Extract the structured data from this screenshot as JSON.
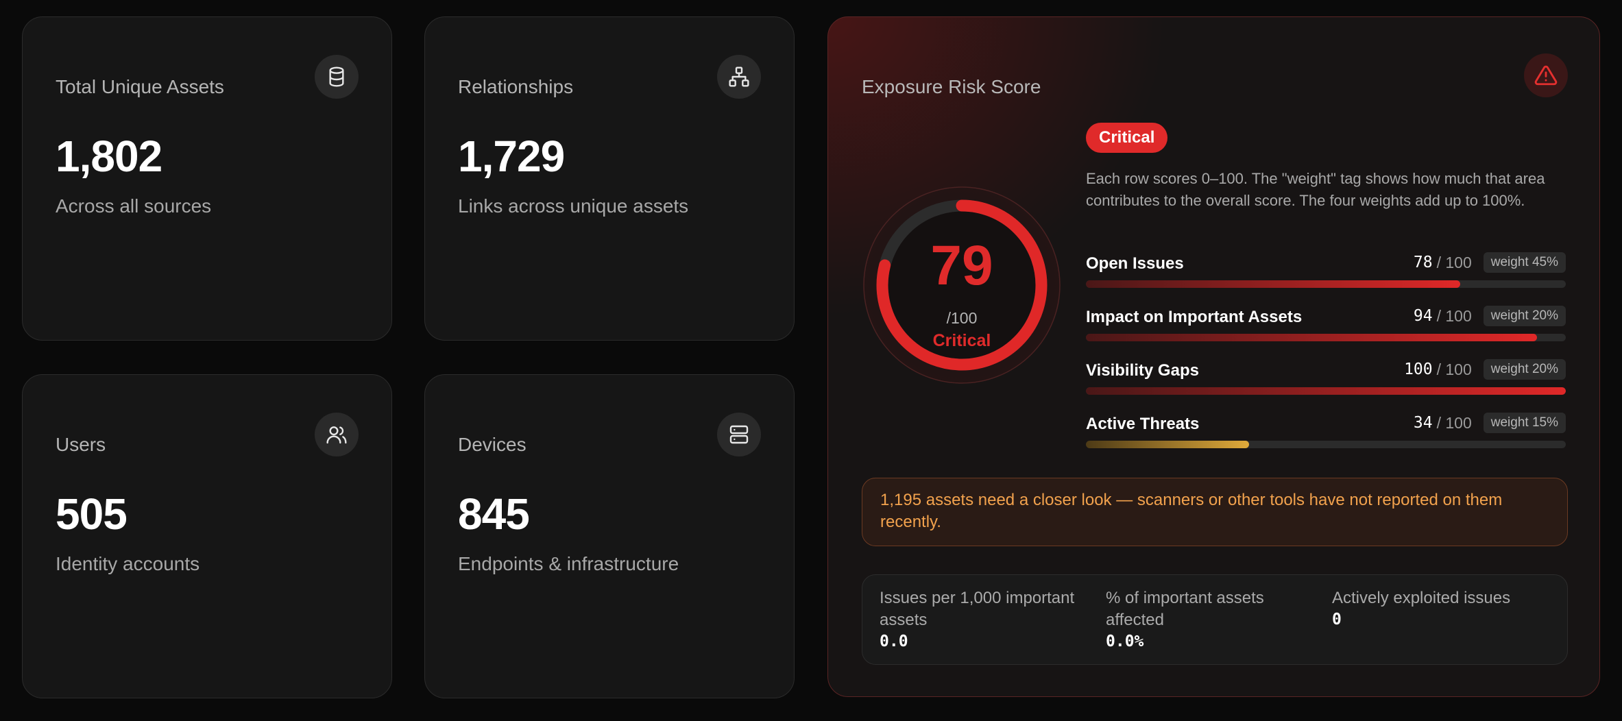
{
  "stats": [
    {
      "title": "Total Unique Assets",
      "value": "1,802",
      "subtitle": "Across all sources",
      "icon": "database-icon"
    },
    {
      "title": "Relationships",
      "value": "1,729",
      "subtitle": "Links across unique assets",
      "icon": "network-icon"
    },
    {
      "title": "Users",
      "value": "505",
      "subtitle": "Identity accounts",
      "icon": "users-icon"
    },
    {
      "title": "Devices",
      "value": "845",
      "subtitle": "Endpoints & infrastructure",
      "icon": "server-icon"
    }
  ],
  "risk": {
    "title": "Exposure Risk Score",
    "icon": "alert-triangle-icon",
    "score": "79",
    "score_value": 79,
    "score_denominator": "/100",
    "level": "Critical",
    "badge": "Critical",
    "description": "Each row scores 0–100. The \"weight\" tag shows how much that area contributes to the overall score. The four weights add up to 100%.",
    "metrics": [
      {
        "label": "Open Issues",
        "score": "78",
        "denom": "/ 100",
        "weight": "weight 45%",
        "fill_percent": 78
      },
      {
        "label": "Impact on Important Assets",
        "score": "94",
        "denom": "/ 100",
        "weight": "weight 20%",
        "fill_percent": 94
      },
      {
        "label": "Visibility Gaps",
        "score": "100",
        "denom": "/ 100",
        "weight": "weight 20%",
        "fill_percent": 100
      },
      {
        "label": "Active Threats",
        "score": "34",
        "denom": "/ 100",
        "weight": "weight 15%",
        "fill_percent": 34
      }
    ],
    "notice": "1,195 assets need a closer look — scanners or other tools have not reported on them recently.",
    "kpis": [
      {
        "label": "Issues per 1,000 important assets",
        "value": "0.0"
      },
      {
        "label": "% of important assets affected",
        "value": "0.0%"
      },
      {
        "label": "Actively exploited issues",
        "value": "0"
      }
    ]
  },
  "colors": {
    "critical": "#e02b2b",
    "warning": "#f2a24d",
    "amber_bar": "#e0aa3a",
    "background": "#0a0a0a",
    "card": "#161616"
  }
}
